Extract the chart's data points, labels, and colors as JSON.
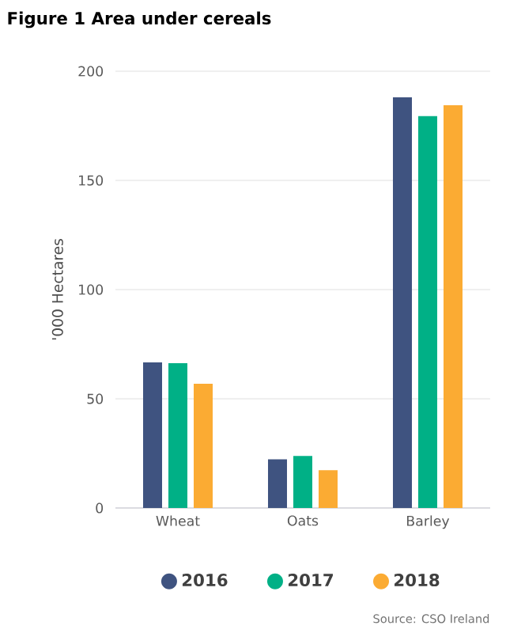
{
  "chart_data": {
    "type": "bar",
    "title": "Figure 1 Area under cereals",
    "ylabel": "'000 Hectares",
    "categories": [
      "Wheat",
      "Oats",
      "Barley"
    ],
    "series": [
      {
        "name": "2016",
        "color": "#3f5380",
        "values": [
          66.7,
          22.3,
          188
        ]
      },
      {
        "name": "2017",
        "color": "#00b086",
        "values": [
          66.3,
          23.8,
          179.4
        ]
      },
      {
        "name": "2018",
        "color": "#fbab33",
        "values": [
          56.9,
          17.3,
          184.4
        ]
      }
    ],
    "ylim": [
      0,
      200
    ],
    "yticks": [
      0,
      50,
      100,
      150,
      200
    ],
    "grid": "y",
    "legend": "bottom",
    "annotations": [
      "Source: CSO Ireland"
    ]
  }
}
